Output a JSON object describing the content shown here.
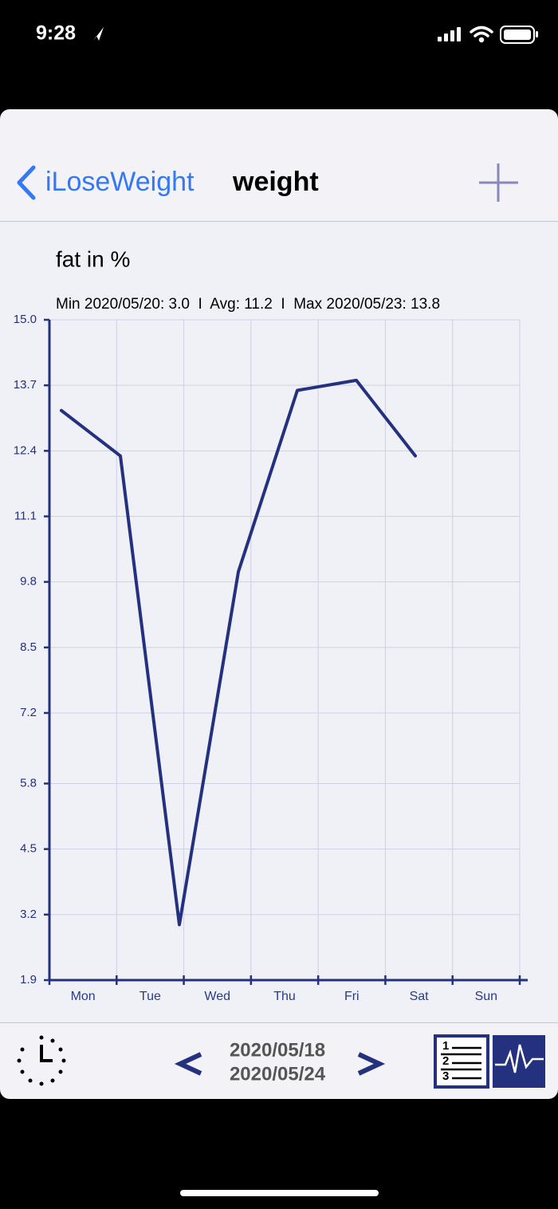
{
  "status_bar": {
    "time": "9:28"
  },
  "nav": {
    "back": "iLoseWeight",
    "title": "weight"
  },
  "chart_data": {
    "type": "line",
    "title": "fat in %",
    "subtitle": "Min 2020/05/20: 3.0  I  Avg: 11.2  I  Max 2020/05/23: 13.8",
    "categories": [
      "Mon",
      "Tue",
      "Wed",
      "Thu",
      "Fri",
      "Sat",
      "Sun"
    ],
    "values": [
      13.2,
      12.3,
      3.0,
      10.0,
      13.6,
      13.8,
      12.3
    ],
    "color": "#24317e",
    "ylim": [
      1.9,
      15
    ],
    "yticks": [
      1.9,
      3.2,
      4.5,
      5.8,
      7.2,
      8.5,
      9.8,
      11.1,
      12.4,
      13.7,
      {
        "value": 15,
        "label": "15.0"
      }
    ],
    "grid": true
  },
  "footer": {
    "start_date": "2020/05/18",
    "end_date": "2020/05/24"
  }
}
